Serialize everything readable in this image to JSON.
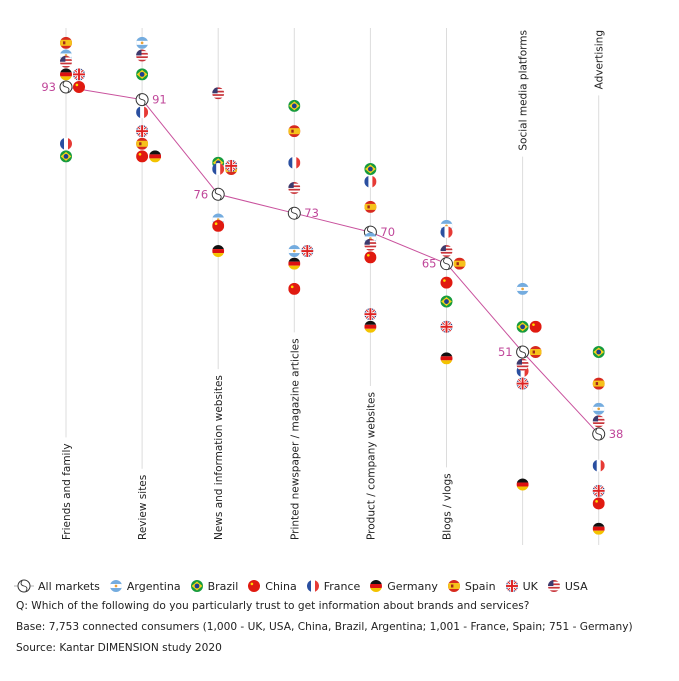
{
  "colors": {
    "line": "#c9529d",
    "value_label": "#c0479a",
    "axis": "#dcdcdc",
    "text": "#222222"
  },
  "legend": [
    {
      "key": "all",
      "label": "All markets",
      "icon": "all-markets-icon"
    },
    {
      "key": "argentina",
      "label": "Argentina",
      "icon": "argentina-flag-icon"
    },
    {
      "key": "brazil",
      "label": "Brazil",
      "icon": "brazil-flag-icon"
    },
    {
      "key": "china",
      "label": "China",
      "icon": "china-flag-icon"
    },
    {
      "key": "france",
      "label": "France",
      "icon": "france-flag-icon"
    },
    {
      "key": "germany",
      "label": "Germany",
      "icon": "germany-flag-icon"
    },
    {
      "key": "spain",
      "label": "Spain",
      "icon": "spain-flag-icon"
    },
    {
      "key": "uk",
      "label": "UK",
      "icon": "uk-flag-icon"
    },
    {
      "key": "usa",
      "label": "USA",
      "icon": "usa-flag-icon"
    }
  ],
  "notes": {
    "question": "Q: Which of the following do you particularly trust to get information about brands and services?",
    "base": "Base: 7,753 connected consumers (1,000 - UK, USA, China, Brazil, Argentina; 1,001 - France, Spain; 751 - Germany)",
    "source": "Source: Kantar DIMENSION study 2020"
  },
  "chart_data": {
    "type": "scatter",
    "title": "",
    "xlabel": "",
    "ylabel": "",
    "y_axis_shown": false,
    "ylim": [
      20,
      100
    ],
    "grid": false,
    "legend_position": "bottom",
    "categories": [
      "Friends and family",
      "Review sites",
      "News and information websites",
      "Printed newspaper / magazine articles",
      "Product / company websites",
      "Blogs / vlogs",
      "Social media platforms",
      "Advertising"
    ],
    "label_position": [
      "bottom",
      "bottom",
      "bottom",
      "bottom",
      "bottom",
      "bottom",
      "top",
      "top"
    ],
    "all_markets": {
      "name": "All markets",
      "values": [
        93,
        91,
        76,
        73,
        70,
        65,
        51,
        38
      ],
      "label_side": [
        "left",
        "right",
        "left",
        "right",
        "right",
        "left",
        "left",
        "right"
      ]
    },
    "series": [
      {
        "name": "Argentina",
        "key": "argentina",
        "values": [
          98,
          100,
          72,
          67,
          69,
          71,
          61,
          42
        ]
      },
      {
        "name": "Brazil",
        "key": "brazil",
        "values": [
          82,
          95,
          81,
          90,
          80,
          59,
          55,
          51
        ]
      },
      {
        "name": "China",
        "key": "china",
        "values": [
          93,
          82,
          71,
          61,
          66,
          62,
          55,
          27
        ]
      },
      {
        "name": "France",
        "key": "france",
        "values": [
          84,
          89,
          80,
          81,
          78,
          70,
          48,
          33
        ]
      },
      {
        "name": "Germany",
        "key": "germany",
        "values": [
          95,
          82,
          67,
          65,
          55,
          50,
          30,
          23
        ]
      },
      {
        "name": "Spain",
        "key": "spain",
        "values": [
          100,
          84,
          80,
          86,
          74,
          65,
          51,
          46
        ]
      },
      {
        "name": "UK",
        "key": "uk",
        "values": [
          95,
          86,
          80.5,
          67,
          57,
          55,
          46,
          29
        ]
      },
      {
        "name": "USA",
        "key": "usa",
        "values": [
          97,
          98,
          92,
          77,
          68,
          67,
          49,
          40
        ]
      }
    ]
  }
}
